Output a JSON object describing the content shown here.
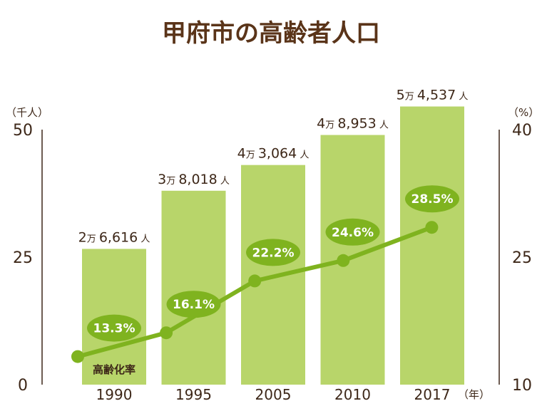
{
  "chart_data": {
    "type": "bar",
    "title": "甲府市の高齢者人口",
    "categories": [
      "1990",
      "1995",
      "2005",
      "2010",
      "2017"
    ],
    "x_unit": "（年）",
    "y_left": {
      "unit": "（千人）",
      "ticks": [
        "50",
        "25",
        "0"
      ],
      "range": [
        0,
        50
      ]
    },
    "y_right": {
      "unit": "（%）",
      "ticks": [
        "40",
        "25",
        "10"
      ],
      "range": [
        10,
        40
      ]
    },
    "series": [
      {
        "type": "bar",
        "values": [
          26616,
          38018,
          43064,
          48953,
          54537
        ],
        "labels": [
          {
            "man": "2",
            "unit_man": "万",
            "rest": "6,616",
            "unit_nin": "人"
          },
          {
            "man": "3",
            "unit_man": "万",
            "rest": "8,018",
            "unit_nin": "人"
          },
          {
            "man": "4",
            "unit_man": "万",
            "rest": "3,064",
            "unit_nin": "人"
          },
          {
            "man": "4",
            "unit_man": "万",
            "rest": "8,953",
            "unit_nin": "人"
          },
          {
            "man": "5",
            "unit_man": "万",
            "rest": "4,537",
            "unit_nin": "人"
          }
        ],
        "color": "#b8d56a"
      },
      {
        "type": "line",
        "name": "高齢化率",
        "values": [
          13.3,
          16.1,
          22.2,
          24.6,
          28.5
        ],
        "labels": [
          "13.3%",
          "16.1%",
          "22.2%",
          "24.6%",
          "28.5%"
        ],
        "color": "#7fb31f"
      }
    ]
  }
}
